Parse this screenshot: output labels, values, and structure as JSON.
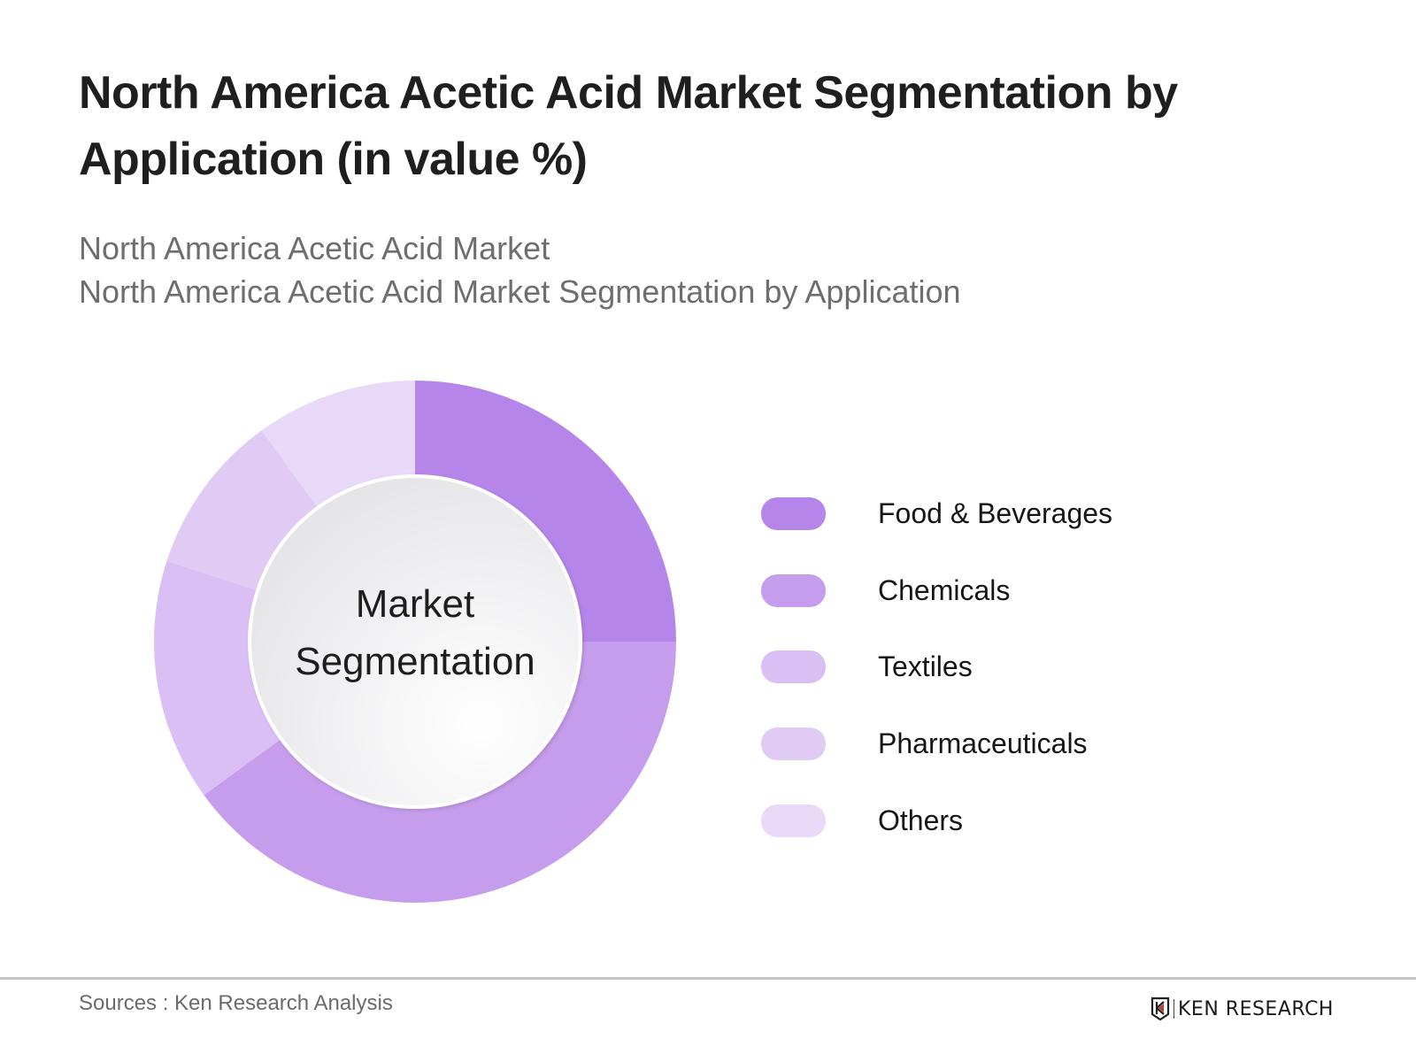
{
  "header": {
    "title": "North America Acetic Acid Market Segmentation by Application (in value %)",
    "subtitle_line1": "North America Acetic Acid Market",
    "subtitle_line2": "North America Acetic Acid Market Segmentation by Application"
  },
  "center_label": {
    "line1": "Market",
    "line2": "Segmentation"
  },
  "legend": [
    {
      "label": "Food & Beverages",
      "color": "#B685EA"
    },
    {
      "label": "Chemicals",
      "color": "#C69DEC"
    },
    {
      "label": "Textiles",
      "color": "#D9BFF4"
    },
    {
      "label": "Pharmaceuticals",
      "color": "#E0CBF5"
    },
    {
      "label": "Others",
      "color": "#E9D9F9"
    }
  ],
  "footer": {
    "sources": "Sources : Ken Research Analysis",
    "logo_text": "KEN RESEARCH",
    "logo_icon": "ken-research-shield-logo"
  },
  "chart_data": {
    "type": "pie",
    "donut": true,
    "title": "North America Acetic Acid Market Segmentation by Application (in value %)",
    "center_text": "Market Segmentation",
    "categories": [
      "Food & Beverages",
      "Chemicals",
      "Textiles",
      "Pharmaceuticals",
      "Others"
    ],
    "values": [
      25,
      40,
      15,
      10,
      10
    ],
    "colors": [
      "#B685EA",
      "#C69DEC",
      "#D9BFF4",
      "#E0CBF5",
      "#E9D9F9"
    ],
    "start_angle_deg": 0,
    "direction": "clockwise",
    "legend_position": "right",
    "data_labels": false
  }
}
